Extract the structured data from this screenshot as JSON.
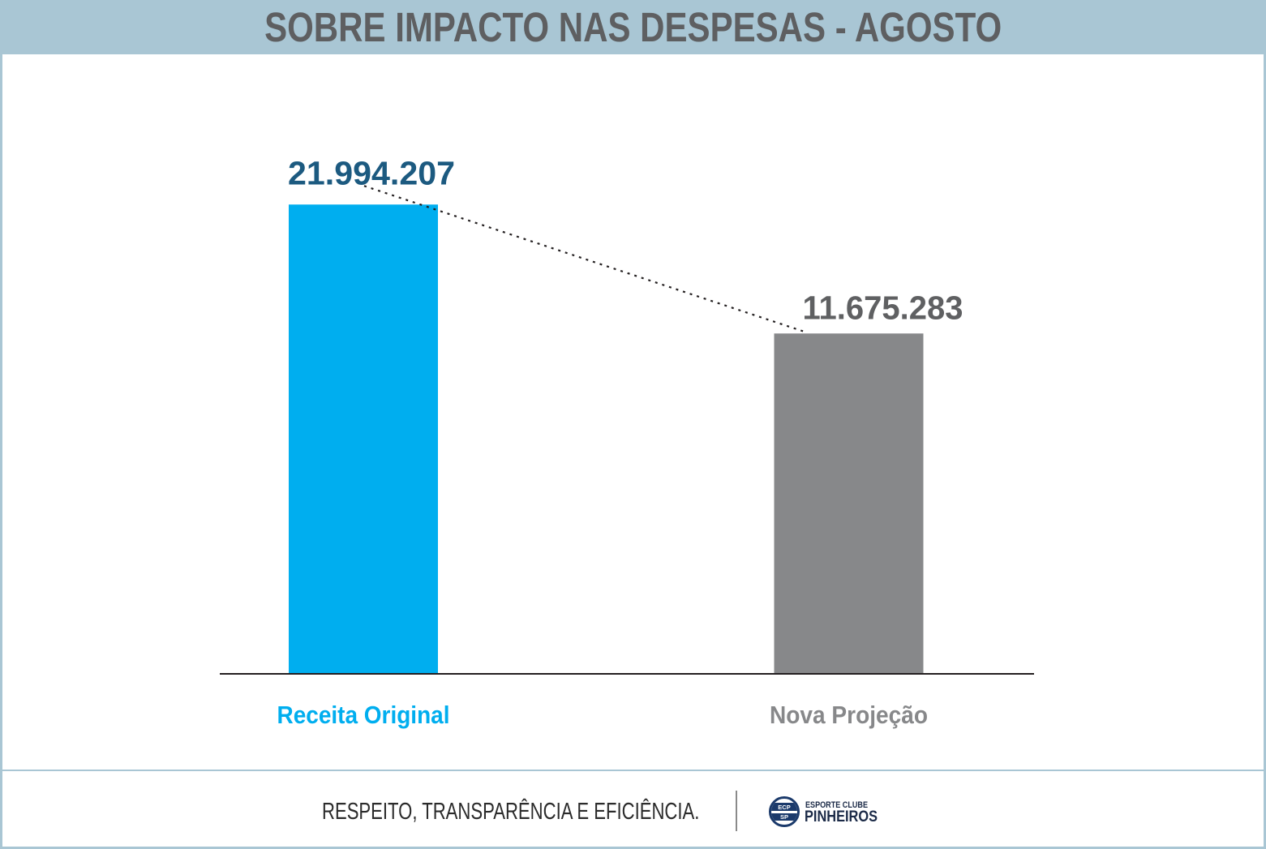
{
  "chart_data": {
    "type": "bar",
    "title": "SOBRE IMPACTO NAS DESPESAS - AGOSTO",
    "categories": [
      "Receita Original",
      "Nova Projeção"
    ],
    "values": [
      21994207,
      11675283
    ],
    "value_labels": [
      "21.994.207",
      "11.675.283"
    ],
    "xlabel": "",
    "ylabel": "",
    "grid": false,
    "colors": [
      "#00aeef",
      "#87888a"
    ],
    "value_label_colors": [
      "#1c5a80",
      "#5f6062"
    ],
    "category_label_colors": [
      "#00aeef",
      "#87888a"
    ]
  },
  "theme": {
    "header_background": "#a9c6d4",
    "title_color": "#5e5f61",
    "frame_color": "#a9c6d4",
    "axis_color": "#231f20",
    "footer_text_color": "#2b2b2b",
    "logo_color": "#1b2a47",
    "crest_color": "#1b3a6b"
  },
  "footer": {
    "slogan": "RESPEITO, TRANSPARÊNCIA E EFICIÊNCIA.",
    "logo": {
      "icon": "club-crest-icon",
      "line1": "ESPORTE CLUBE",
      "line2": "PINHEIROS",
      "crest_top": "ECP",
      "crest_bottom": "SP"
    }
  }
}
